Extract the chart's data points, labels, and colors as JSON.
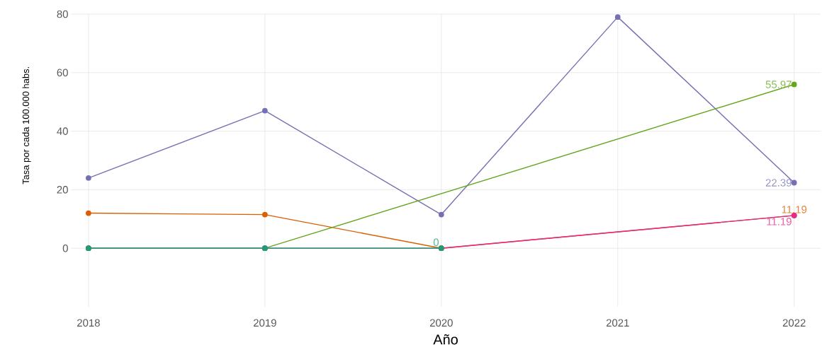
{
  "chart_data": {
    "type": "line",
    "xlabel": "Año",
    "ylabel": "Tasa por cada 100.000 habs.",
    "x": [
      2018,
      2019,
      2020,
      2021,
      2022
    ],
    "xlim": [
      2017.9,
      2022.15
    ],
    "ylim": [
      -20,
      80
    ],
    "xticks": [
      2018,
      2019,
      2020,
      2021,
      2022
    ],
    "yticks": [
      0,
      20,
      40,
      60,
      80
    ],
    "grid": true,
    "marker": "circle",
    "line_style": "solid",
    "series": [
      {
        "color": "#7570b3",
        "values": [
          24,
          47,
          11.5,
          79,
          22.39
        ],
        "value_labels": [
          null,
          null,
          null,
          null,
          "22.39"
        ]
      },
      {
        "color": "#d95f02",
        "values": [
          12,
          11.5,
          0,
          null,
          11.19
        ],
        "value_labels": [
          null,
          null,
          null,
          null,
          "11.19"
        ]
      },
      {
        "color": "#66a61e",
        "values": [
          0,
          0,
          null,
          null,
          55.97
        ],
        "value_labels": [
          null,
          null,
          null,
          null,
          "55.97"
        ]
      },
      {
        "color": "#e7298a",
        "values": [
          0,
          0,
          0,
          null,
          11.19
        ],
        "value_labels": [
          null,
          null,
          null,
          null,
          "11.19"
        ]
      },
      {
        "color": "#1b9e77",
        "values": [
          0,
          0,
          0,
          null,
          null
        ],
        "value_labels": [
          null,
          null,
          "0",
          null,
          null
        ]
      }
    ]
  }
}
